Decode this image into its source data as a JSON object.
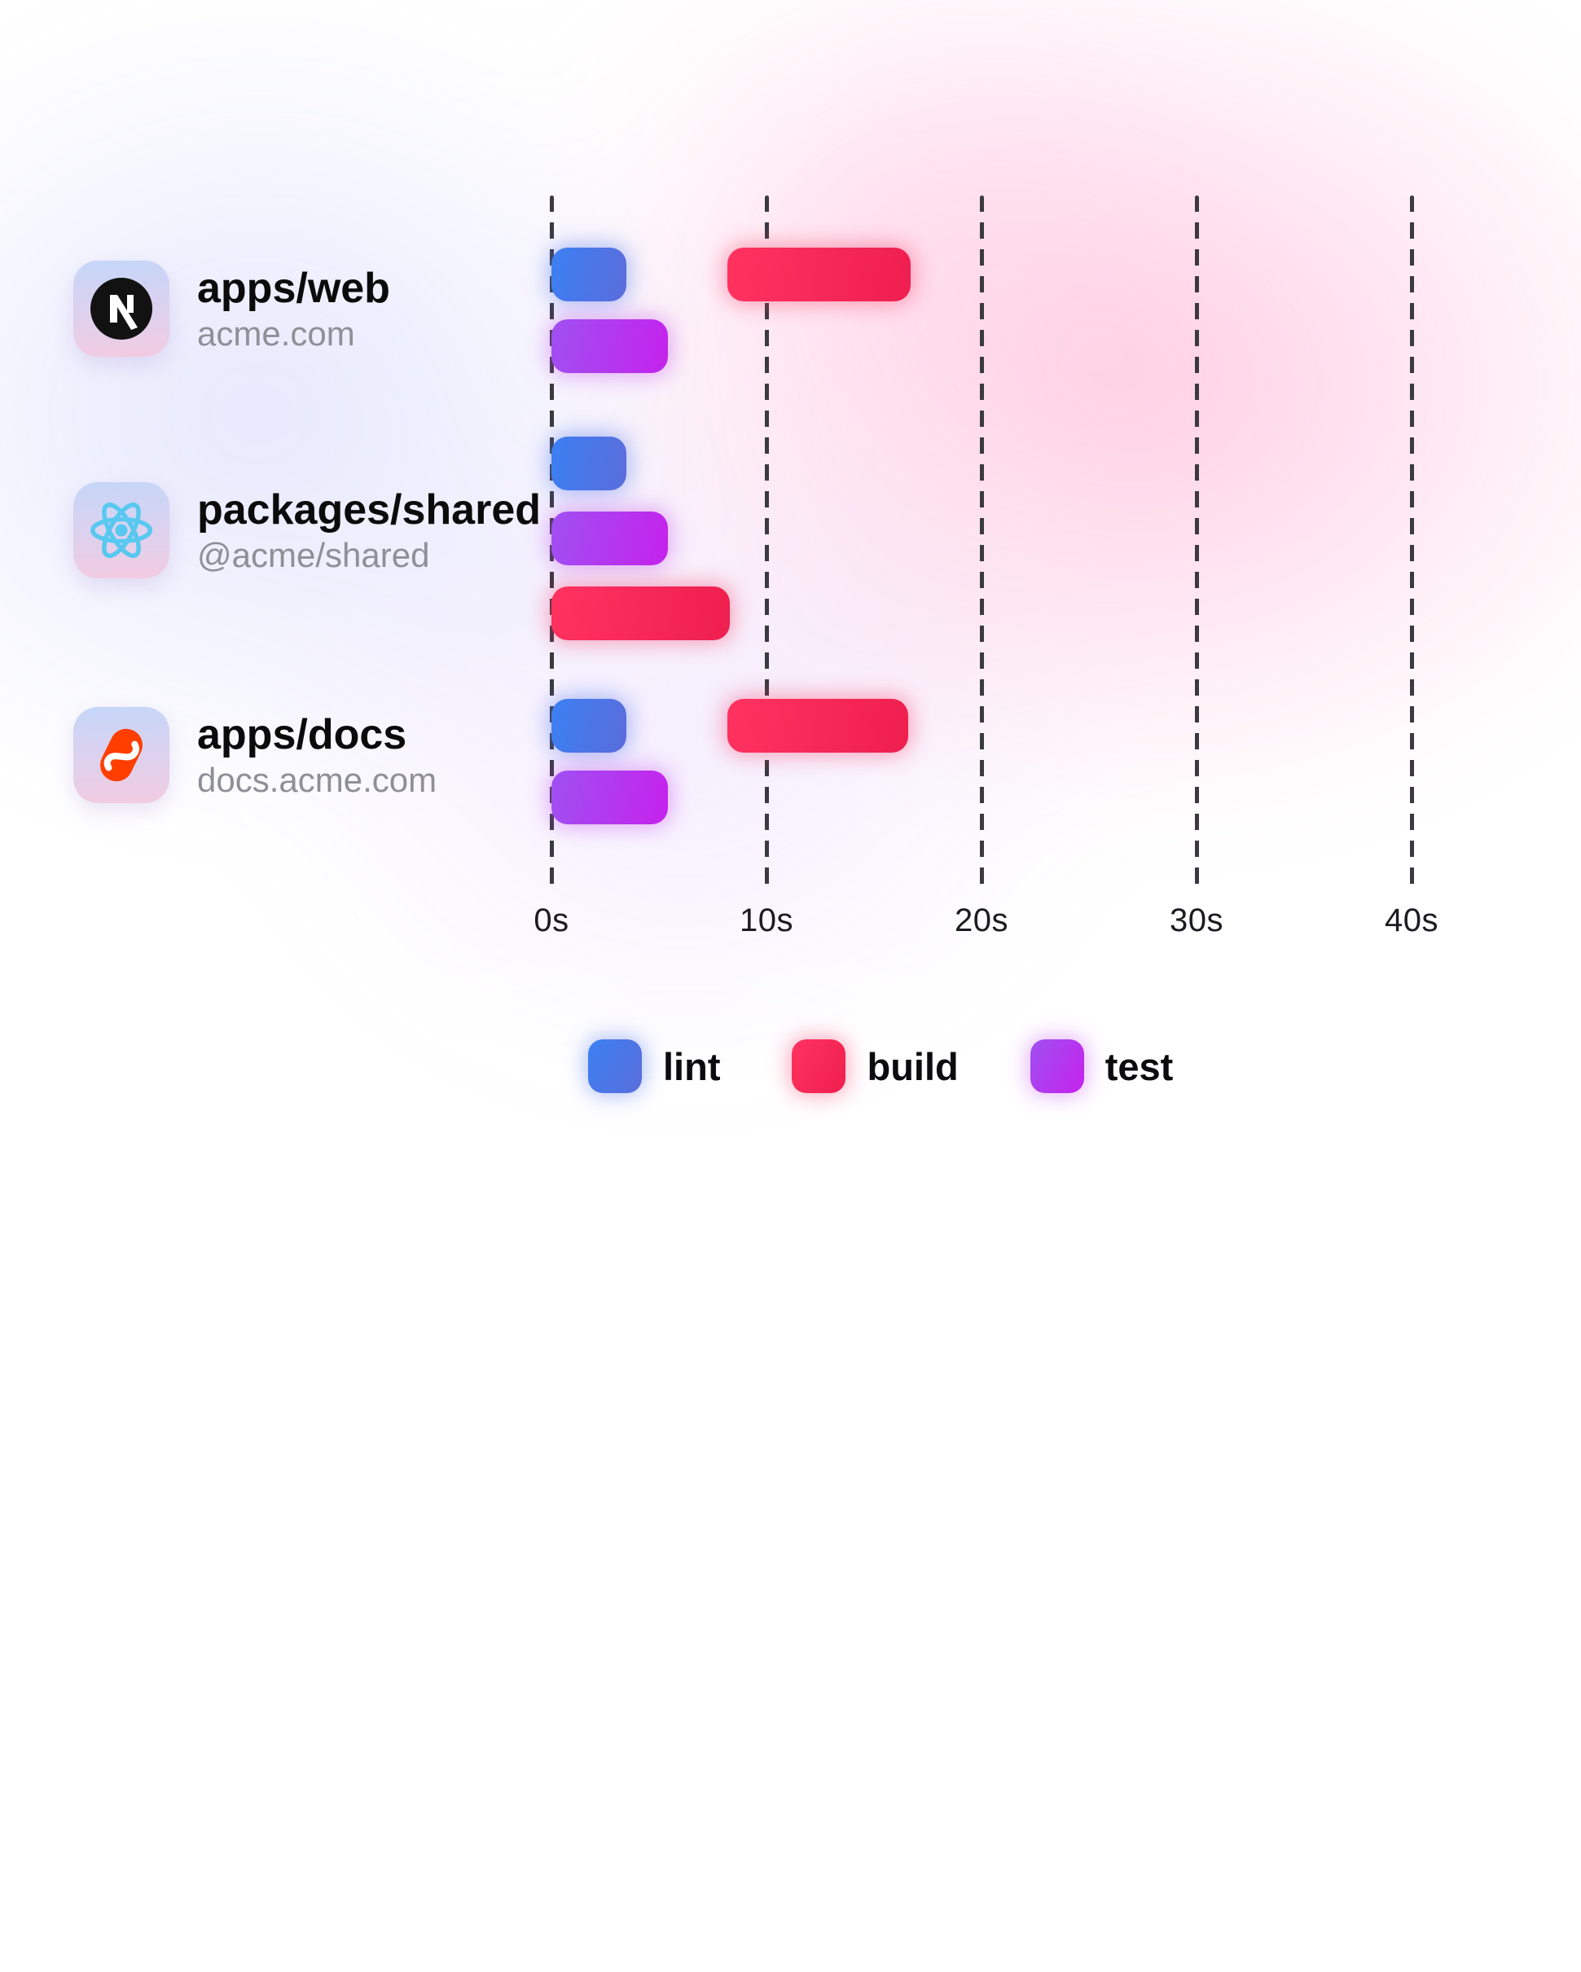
{
  "rows": [
    {
      "title": "apps/web",
      "subtitle": "acme.com",
      "icon": "nextjs-icon"
    },
    {
      "title": "packages/shared",
      "subtitle": "@acme/shared",
      "icon": "react-icon"
    },
    {
      "title": "apps/docs",
      "subtitle": "docs.acme.com",
      "icon": "svelte-icon"
    }
  ],
  "axis": {
    "tick_labels": [
      "0s",
      "10s",
      "20s",
      "30s",
      "40s"
    ],
    "unit": "seconds"
  },
  "legend": {
    "items": [
      {
        "label": "lint"
      },
      {
        "label": "build"
      },
      {
        "label": "test"
      }
    ]
  },
  "colors": {
    "lint": {
      "from": "#3b80f2",
      "to": "#5b6ddc",
      "glow": "rgba(80,115,240,0.45)"
    },
    "build": {
      "from": "#ff3260",
      "to": "#ee1f4f",
      "glow": "rgba(250,45,95,0.40)"
    },
    "test": {
      "from": "#a050f2",
      "to": "#c522ec",
      "glow": "rgba(190,60,240,0.40)"
    },
    "gridline": "#3a3a40",
    "axis_text": "#1b1b20",
    "title_text": "#0b0b0c",
    "subtitle_text": "#8f8f97",
    "legend_text": "#0c0c0e",
    "nextjs_black": "#121212",
    "react_cyan": "#58c8f0",
    "svelte_orange": "#ff3e00"
  },
  "chart_data": {
    "type": "bar",
    "subtype": "gantt-timeline",
    "title": "",
    "x_unit": "seconds",
    "x_ticks": [
      0,
      10,
      20,
      30,
      40
    ],
    "x_range": [
      0,
      40
    ],
    "grid": "dashed-vertical",
    "legend_entries": [
      "lint",
      "build",
      "test"
    ],
    "rows": [
      {
        "name": "apps/web",
        "tasks": [
          {
            "task": "lint",
            "start": 0,
            "end": 3.5,
            "lane": 0
          },
          {
            "task": "build",
            "start": 8.2,
            "end": 16.7,
            "lane": 0
          },
          {
            "task": "test",
            "start": 0,
            "end": 5.4,
            "lane": 1
          }
        ]
      },
      {
        "name": "packages/shared",
        "tasks": [
          {
            "task": "lint",
            "start": 0,
            "end": 3.5,
            "lane": 0
          },
          {
            "task": "test",
            "start": 0,
            "end": 5.4,
            "lane": 1
          },
          {
            "task": "build",
            "start": 0,
            "end": 8.3,
            "lane": 2
          }
        ]
      },
      {
        "name": "apps/docs",
        "tasks": [
          {
            "task": "lint",
            "start": 0,
            "end": 3.5,
            "lane": 0
          },
          {
            "task": "build",
            "start": 8.2,
            "end": 16.6,
            "lane": 0
          },
          {
            "task": "test",
            "start": 0,
            "end": 5.4,
            "lane": 1
          }
        ]
      }
    ]
  }
}
